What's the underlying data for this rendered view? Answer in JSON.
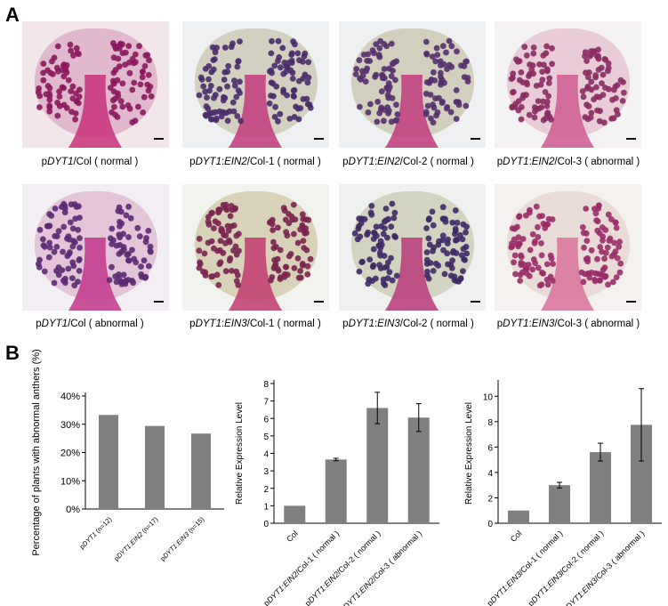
{
  "panels": {
    "a": "A",
    "b": "B"
  },
  "micrographs": [
    {
      "parts": [
        {
          "t": "p",
          "i": false
        },
        {
          "t": "DYT1",
          "i": true
        },
        {
          "t": "/Col ( normal )",
          "i": false
        }
      ],
      "colors": {
        "bg": "#f3e6ea",
        "wall": "#d9a9c4",
        "pollen": "#8b1a5e",
        "stem": "#c8307c"
      }
    },
    {
      "parts": [
        {
          "t": "p",
          "i": false
        },
        {
          "t": "DYT1",
          "i": true
        },
        {
          "t": ":",
          "i": false
        },
        {
          "t": "EIN2",
          "i": true
        },
        {
          "t": "/Col-1 ( normal )",
          "i": false
        }
      ],
      "colors": {
        "bg": "#eef0f2",
        "wall": "#c9c6b0",
        "pollen": "#4a2b6b",
        "stem": "#c23a7e"
      }
    },
    {
      "parts": [
        {
          "t": "p",
          "i": false
        },
        {
          "t": "DYT1",
          "i": true
        },
        {
          "t": ":",
          "i": false
        },
        {
          "t": "EIN2",
          "i": true
        },
        {
          "t": "/Col-2 ( normal )",
          "i": false
        }
      ],
      "colors": {
        "bg": "#eef0f2",
        "wall": "#c8c4ad",
        "pollen": "#55306d",
        "stem": "#c23a7e"
      }
    },
    {
      "parts": [
        {
          "t": "p",
          "i": false
        },
        {
          "t": "DYT1",
          "i": true
        },
        {
          "t": ":",
          "i": false
        },
        {
          "t": "EIN2",
          "i": true
        },
        {
          "t": "/Col-3 ( abnormal )",
          "i": false
        }
      ],
      "colors": {
        "bg": "#f4f2f2",
        "wall": "#e4bfcf",
        "pollen": "#8a2c63",
        "stem": "#cf5b93"
      }
    },
    {
      "parts": [
        {
          "t": "p",
          "i": false
        },
        {
          "t": "DYT1",
          "i": true
        },
        {
          "t": "/Col ( abnormal )",
          "i": false
        }
      ],
      "colors": {
        "bg": "#f2eef3",
        "wall": "#dcb7d0",
        "pollen": "#5c2a72",
        "stem": "#c2358a"
      }
    },
    {
      "parts": [
        {
          "t": "p",
          "i": false
        },
        {
          "t": "DYT1",
          "i": true
        },
        {
          "t": ":",
          "i": false
        },
        {
          "t": "EIN3",
          "i": true
        },
        {
          "t": "/Col-1 ( normal )",
          "i": false
        }
      ],
      "colors": {
        "bg": "#f2f2ee",
        "wall": "#cfc7a6",
        "pollen": "#7a2550",
        "stem": "#c23a6e"
      }
    },
    {
      "parts": [
        {
          "t": "p",
          "i": false
        },
        {
          "t": "DYT1",
          "i": true
        },
        {
          "t": ":",
          "i": false
        },
        {
          "t": "EIN3",
          "i": true
        },
        {
          "t": "/Col-2 ( normal )",
          "i": false
        }
      ],
      "colors": {
        "bg": "#eff1f0",
        "wall": "#c9c8b2",
        "pollen": "#3f2a66",
        "stem": "#b8387a"
      }
    },
    {
      "parts": [
        {
          "t": "p",
          "i": false
        },
        {
          "t": "DYT1",
          "i": true
        },
        {
          "t": ":",
          "i": false
        },
        {
          "t": "EIN3",
          "i": true
        },
        {
          "t": "/Col-3 ( abnormal )",
          "i": false
        }
      ],
      "colors": {
        "bg": "#f4f1ee",
        "wall": "#e6d3cf",
        "pollen": "#9a2e69",
        "stem": "#d9729c"
      }
    }
  ],
  "chart_data": [
    {
      "type": "bar",
      "ylabel": "Percentage of plants with abnormal anthers (%)",
      "xlabel": "",
      "categories": [
        [
          {
            "t": "p",
            "i": false
          },
          {
            "t": "DYT1",
            "i": true
          },
          {
            "t": " (n=12)",
            "i": false
          }
        ],
        [
          {
            "t": "p",
            "i": false
          },
          {
            "t": "DYT1",
            "i": true
          },
          {
            "t": ":",
            "i": false
          },
          {
            "t": "EIN2",
            "i": true
          },
          {
            "t": " (n=17)",
            "i": false
          }
        ],
        [
          {
            "t": "p",
            "i": false
          },
          {
            "t": "DYT1",
            "i": true
          },
          {
            "t": ":",
            "i": false
          },
          {
            "t": "EIN3",
            "i": true
          },
          {
            "t": " (n=15)",
            "i": false
          }
        ]
      ],
      "values": [
        33.3,
        29.4,
        26.7
      ],
      "ylim": [
        0,
        40
      ],
      "yticks": [
        "0%",
        "10%",
        "20%",
        "30%",
        "40%"
      ],
      "bar_color": "#808080"
    },
    {
      "type": "bar",
      "ylabel": "Relative Expression Level",
      "xlabel": "",
      "categories": [
        [
          {
            "t": "Col",
            "i": false
          }
        ],
        [
          {
            "t": "p",
            "i": false
          },
          {
            "t": "DYT1",
            "i": true
          },
          {
            "t": ":",
            "i": false
          },
          {
            "t": "EIN2",
            "i": true
          },
          {
            "t": "/Col-1 ( normal )",
            "i": false
          }
        ],
        [
          {
            "t": "p",
            "i": false
          },
          {
            "t": "DYT1",
            "i": true
          },
          {
            "t": ":",
            "i": false
          },
          {
            "t": "EIN2",
            "i": true
          },
          {
            "t": "/Col-2 ( normal )",
            "i": false
          }
        ],
        [
          {
            "t": "p",
            "i": false
          },
          {
            "t": "DYT1",
            "i": true
          },
          {
            "t": ":",
            "i": false
          },
          {
            "t": "EIN2",
            "i": true
          },
          {
            "t": "/Col-3 ( abnormal )",
            "i": false
          }
        ]
      ],
      "values": [
        1.0,
        3.65,
        6.6,
        6.05
      ],
      "errors": [
        0,
        0.07,
        0.9,
        0.8
      ],
      "ylim": [
        0,
        8
      ],
      "yticks": [
        "0",
        "1",
        "2",
        "3",
        "4",
        "5",
        "6",
        "7",
        "8"
      ],
      "bar_color": "#808080"
    },
    {
      "type": "bar",
      "ylabel": "Relative Expression Level",
      "xlabel": "",
      "categories": [
        [
          {
            "t": "Col",
            "i": false
          }
        ],
        [
          {
            "t": "p",
            "i": false
          },
          {
            "t": "DYT1",
            "i": true
          },
          {
            "t": ":",
            "i": false
          },
          {
            "t": "EIN3",
            "i": true
          },
          {
            "t": "/Col-1 ( normal )",
            "i": false
          }
        ],
        [
          {
            "t": "p",
            "i": false
          },
          {
            "t": "DYT1",
            "i": true
          },
          {
            "t": ":",
            "i": false
          },
          {
            "t": "EIN3",
            "i": true
          },
          {
            "t": "/Col-2 ( normal )",
            "i": false
          }
        ],
        [
          {
            "t": "p",
            "i": false
          },
          {
            "t": "DYT1",
            "i": true
          },
          {
            "t": ":",
            "i": false
          },
          {
            "t": "EIN3",
            "i": true
          },
          {
            "t": "/Col-3 ( abnormal )",
            "i": false
          }
        ]
      ],
      "values": [
        1.0,
        3.0,
        5.6,
        7.75
      ],
      "errors": [
        0,
        0.22,
        0.7,
        2.85
      ],
      "ylim": [
        0,
        11
      ],
      "yticks": [
        "0",
        "2",
        "4",
        "6",
        "8",
        "10"
      ],
      "ytick_values": [
        0,
        2,
        4,
        6,
        8,
        10
      ],
      "bar_color": "#808080"
    }
  ]
}
